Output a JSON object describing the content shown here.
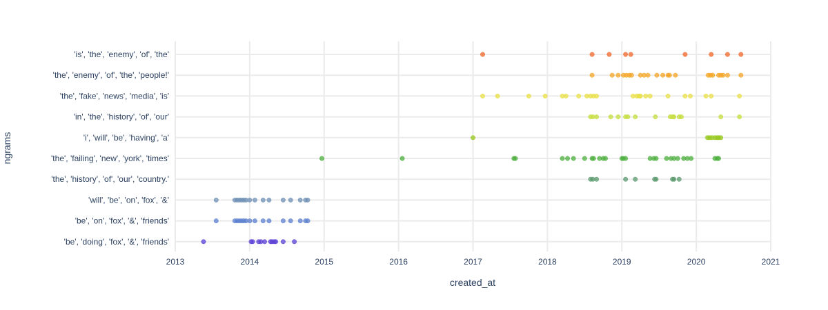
{
  "chart_data": {
    "type": "scatter",
    "xlabel": "created_at",
    "ylabel": "ngrams",
    "xlim": [
      2013,
      2021
    ],
    "x_ticks": [
      "2013",
      "2014",
      "2015",
      "2016",
      "2017",
      "2018",
      "2019",
      "2020",
      "2021"
    ],
    "grid": true,
    "categories": [
      "'is', 'the', 'enemy', 'of', 'the'",
      "'the', 'enemy', 'of', 'the', 'people!'",
      "'the', 'fake', 'news', 'media', 'is'",
      "'in', 'the', 'history', 'of', 'our'",
      "'i', 'will', 'be', 'having', 'a'",
      "'the', 'failing', 'new', 'york', 'times'",
      "'the', 'history', 'of', 'our', 'country.'",
      "'will', 'be', 'on', 'fox', '&'",
      "'be', 'on', 'fox', '&', 'friends'",
      "'be', 'doing', 'fox', '&', 'friends'"
    ],
    "series": [
      {
        "category": 0,
        "color": "#f0672a",
        "x": [
          2017.13,
          2018.6,
          2018.83,
          2019.05,
          2019.12,
          2019.85,
          2020.2,
          2020.42,
          2020.6
        ]
      },
      {
        "category": 1,
        "color": "#f5a623",
        "x": [
          2018.6,
          2018.87,
          2018.95,
          2019.02,
          2019.06,
          2019.1,
          2019.13,
          2019.25,
          2019.3,
          2019.35,
          2019.47,
          2019.55,
          2019.62,
          2019.64,
          2019.72,
          2020.16,
          2020.19,
          2020.22,
          2020.3,
          2020.33,
          2020.36,
          2020.42,
          2020.6
        ]
      },
      {
        "category": 2,
        "color": "#eae045",
        "x": [
          2017.13,
          2017.33,
          2017.75,
          2017.97,
          2018.2,
          2018.25,
          2018.42,
          2018.53,
          2018.58,
          2018.62,
          2018.66,
          2019.15,
          2019.2,
          2019.23,
          2019.25,
          2019.32,
          2019.38,
          2019.62,
          2019.85,
          2019.92,
          2020.13,
          2020.2,
          2020.58
        ]
      },
      {
        "category": 3,
        "color": "#c7de3c",
        "x": [
          2018.58,
          2018.61,
          2018.66,
          2018.85,
          2018.95,
          2019.05,
          2019.08,
          2019.18,
          2019.45,
          2019.65,
          2019.68,
          2019.7,
          2019.77,
          2019.8,
          2020.33,
          2020.58
        ]
      },
      {
        "category": 4,
        "color": "#97c81e",
        "x": [
          2017.0,
          2020.15,
          2020.18,
          2020.21,
          2020.25,
          2020.28,
          2020.3,
          2020.33
        ]
      },
      {
        "category": 5,
        "color": "#4caf3e",
        "x": [
          2014.97,
          2016.05,
          2017.55,
          2017.57,
          2018.2,
          2018.27,
          2018.35,
          2018.5,
          2018.6,
          2018.62,
          2018.7,
          2018.75,
          2018.78,
          2019.0,
          2019.02,
          2019.05,
          2019.38,
          2019.43,
          2019.46,
          2019.6,
          2019.66,
          2019.7,
          2019.75,
          2019.83,
          2019.88,
          2019.93,
          2020.25,
          2020.28,
          2020.3
        ]
      },
      {
        "category": 6,
        "color": "#5a9a6e",
        "x": [
          2018.58,
          2018.61,
          2018.66,
          2019.05,
          2019.18,
          2019.44,
          2019.46,
          2019.68,
          2019.7,
          2019.77
        ]
      },
      {
        "category": 7,
        "color": "#6d8fb5",
        "x": [
          2013.55,
          2013.8,
          2013.83,
          2013.86,
          2013.89,
          2013.92,
          2013.95,
          2014.0,
          2014.07,
          2014.18,
          2014.26,
          2014.45,
          2014.55,
          2014.68,
          2014.75,
          2014.78
        ]
      },
      {
        "category": 8,
        "color": "#5b7fd0",
        "x": [
          2013.55,
          2013.8,
          2013.83,
          2013.86,
          2013.89,
          2013.92,
          2013.95,
          2014.0,
          2014.07,
          2014.18,
          2014.26,
          2014.45,
          2014.55,
          2014.68,
          2014.75,
          2014.78
        ]
      },
      {
        "category": 9,
        "color": "#5b3fd6",
        "x": [
          2013.38,
          2014.02,
          2014.04,
          2014.12,
          2014.15,
          2014.2,
          2014.28,
          2014.3,
          2014.33,
          2014.35,
          2014.45,
          2014.6
        ]
      }
    ]
  }
}
